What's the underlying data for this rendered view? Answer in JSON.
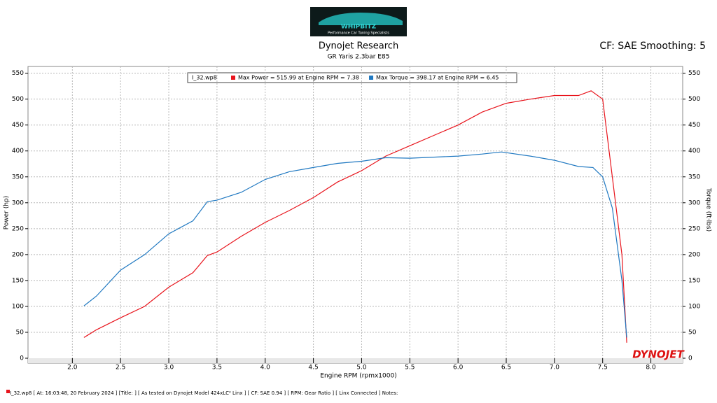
{
  "header": {
    "logo_name": "WHIPBITZ",
    "logo_tagline": "Performance Car Tuning Specialists",
    "settings": "CF: SAE Smoothing: 5"
  },
  "footer": {
    "text": "I_32.wp8  [ At: 16:03:48, 20 February 2024 ]  [Title: ]  [ As tested on Dynojet Model 424xLC² Linx ]  [ CF: SAE 0.94 ]  [ RPM: Gear Ratio ]  [ Linx Connected ]  Notes:",
    "brand": "DYNOJET"
  },
  "chart_data": {
    "type": "line",
    "title": "Dynojet Research",
    "subtitle": "GR Yaris 2.3bar E85",
    "x_label": "Engine RPM (rpmx1000)",
    "y_label": "Power (hp)",
    "y2_label": "Torque (ft·lbs)",
    "legend_title": "I_32.wp8",
    "grid": true,
    "xlim": [
      1.54,
      8.33
    ],
    "xticks": [
      {
        "value": 2,
        "label": "2.0"
      },
      2.5,
      {
        "value": 3,
        "label": "3.0"
      },
      3.5,
      {
        "value": 4,
        "label": "4.0"
      },
      4.5,
      {
        "value": 5,
        "label": "5.0"
      },
      5.5,
      {
        "value": 6,
        "label": "6.0"
      },
      6.5,
      {
        "value": 7,
        "label": "7.0"
      },
      7.5,
      {
        "value": 8,
        "label": "8.0"
      }
    ],
    "ylim": [
      0,
      563
    ],
    "yticks": [
      0,
      50,
      100,
      150,
      200,
      250,
      300,
      350,
      400,
      450,
      500,
      550
    ],
    "y2lim": [
      0,
      563
    ],
    "y2ticks": [
      0,
      50,
      100,
      150,
      200,
      250,
      300,
      350,
      400,
      450,
      500,
      550
    ],
    "series": [
      {
        "name": "Max Power = 515.99 at Engine RPM = 7.38",
        "color": "#e8141c",
        "x": [
          2.12,
          2.25,
          2.5,
          2.75,
          3.0,
          3.25,
          3.4,
          3.5,
          3.75,
          4.0,
          4.25,
          4.5,
          4.75,
          5.0,
          5.25,
          5.5,
          5.75,
          6.0,
          6.25,
          6.5,
          6.75,
          7.0,
          7.25,
          7.38,
          7.5,
          7.6,
          7.7,
          7.75
        ],
        "values": [
          40,
          55,
          78,
          100,
          137,
          165,
          198,
          205,
          235,
          262,
          285,
          310,
          340,
          362,
          390,
          410,
          430,
          450,
          475,
          492,
          500,
          507,
          507,
          516,
          500,
          350,
          200,
          30
        ]
      },
      {
        "name": "Max Torque = 398.17 at Engine RPM = 6.45",
        "color": "#1f78c1",
        "axis": "y2",
        "x": [
          2.12,
          2.25,
          2.5,
          2.75,
          3.0,
          3.25,
          3.4,
          3.5,
          3.75,
          4.0,
          4.25,
          4.5,
          4.75,
          5.0,
          5.25,
          5.5,
          5.75,
          6.0,
          6.25,
          6.45,
          6.75,
          7.0,
          7.25,
          7.4,
          7.5,
          7.6,
          7.7,
          7.75
        ],
        "values": [
          101,
          120,
          170,
          200,
          240,
          265,
          302,
          305,
          320,
          345,
          360,
          368,
          376,
          380,
          387,
          386,
          388,
          390,
          394,
          398,
          390,
          382,
          370,
          368,
          350,
          290,
          150,
          40
        ]
      }
    ]
  }
}
